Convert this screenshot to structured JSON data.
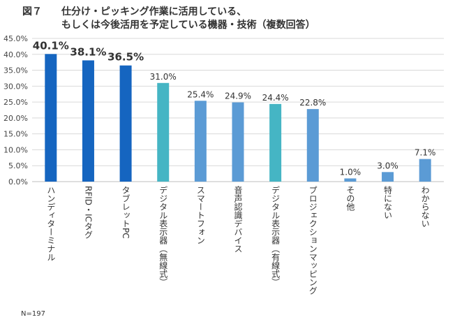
{
  "figure_label": "図７",
  "title_lines": [
    "仕分け・ピッキング作業に活用している、",
    "もしくは今後活用を予定している機器・技術（複数回答）"
  ],
  "footnote": "N=197",
  "colors": {
    "dark_blue": "#1565c0",
    "teal": "#45b5c4",
    "light_blue": "#5b9bd5",
    "grid": "#d9d9d9"
  },
  "chart_data": {
    "type": "bar",
    "title": "仕分け・ピッキング作業に活用している、もしくは今後活用を予定している機器・技術（複数回答）",
    "categories": [
      "ハンディターミナル",
      "RFID・ICタグ",
      "タブレットPC",
      "デジタル表示器（無線式）",
      "スマートフォン",
      "音声認識デバイス",
      "デジタル表示器（有線式）",
      "プロジェクションマッピング",
      "その他",
      "特にない",
      "わからない"
    ],
    "values": [
      40.1,
      38.1,
      36.5,
      31.0,
      25.4,
      24.9,
      24.4,
      22.8,
      1.0,
      3.0,
      7.1
    ],
    "value_labels": [
      "40.1%",
      "38.1%",
      "36.5%",
      "31.0%",
      "25.4%",
      "24.9%",
      "24.4%",
      "22.8%",
      "1.0%",
      "3.0%",
      "7.1%"
    ],
    "bar_colors": [
      "#1565c0",
      "#1565c0",
      "#1565c0",
      "#45b5c4",
      "#5b9bd5",
      "#5b9bd5",
      "#45b5c4",
      "#5b9bd5",
      "#5b9bd5",
      "#5b9bd5",
      "#5b9bd5"
    ],
    "emphasized": [
      true,
      true,
      true,
      false,
      false,
      false,
      false,
      false,
      false,
      false,
      false
    ],
    "y_ticks": [
      "0.0%",
      "5.0%",
      "10.0%",
      "15.0%",
      "20.0%",
      "25.0%",
      "30.0%",
      "35.0%",
      "40.0%",
      "45.0%"
    ],
    "ylim": [
      0,
      45
    ],
    "xlabel": "",
    "ylabel": "",
    "grid": true,
    "legend": "none"
  }
}
